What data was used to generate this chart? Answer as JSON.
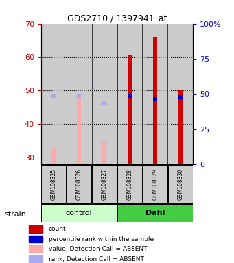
{
  "title": "GDS2710 / 1397941_at",
  "samples": [
    "GSM108325",
    "GSM108326",
    "GSM108327",
    "GSM108328",
    "GSM108329",
    "GSM108330"
  ],
  "groups": [
    "control",
    "control",
    "control",
    "Dahl",
    "Dahl",
    "Dahl"
  ],
  "ylim_left": [
    28,
    70
  ],
  "yticks_left": [
    30,
    40,
    50,
    60,
    70
  ],
  "yticks_right": [
    0,
    25,
    50,
    75,
    100
  ],
  "ytick_labels_right": [
    "0",
    "25",
    "50",
    "75",
    "100%"
  ],
  "red_bars": {
    "present": [
      false,
      false,
      false,
      true,
      true,
      true
    ],
    "bottom": [
      28,
      28,
      28,
      28,
      28,
      28
    ],
    "top": [
      33,
      48.5,
      35,
      60.5,
      66,
      50
    ]
  },
  "pink_bars": {
    "absent": [
      true,
      true,
      true,
      false,
      false,
      false
    ],
    "bottom": [
      28,
      28,
      28,
      28,
      28,
      28
    ],
    "top": [
      33,
      48.5,
      35,
      60.5,
      66,
      50
    ]
  },
  "blue_squares": {
    "present": [
      false,
      false,
      false,
      true,
      true,
      true
    ],
    "y": [
      48.5,
      48.5,
      46.5,
      48.5,
      47.5,
      48.0
    ]
  },
  "light_blue_squares": {
    "absent": [
      true,
      true,
      true,
      false,
      false,
      false
    ],
    "y": [
      48.5,
      48.5,
      46.5,
      48.5,
      47.5,
      48.0
    ]
  },
  "colors": {
    "red": "#cc0000",
    "pink": "#ffaaaa",
    "blue": "#0000cc",
    "light_blue": "#aaaaee",
    "control_bg": "#ccffcc",
    "dahl_bg": "#44cc44",
    "bar_bg": "#cccccc",
    "left_tick_color": "#cc0000",
    "right_tick_color": "#0000cc"
  },
  "control_label": "control",
  "dahl_label": "Dahl",
  "strain_label": "strain",
  "legend_labels": [
    "count",
    "percentile rank within the sample",
    "value, Detection Call = ABSENT",
    "rank, Detection Call = ABSENT"
  ],
  "legend_colors": [
    "#cc0000",
    "#0000cc",
    "#ffaaaa",
    "#aaaaee"
  ]
}
